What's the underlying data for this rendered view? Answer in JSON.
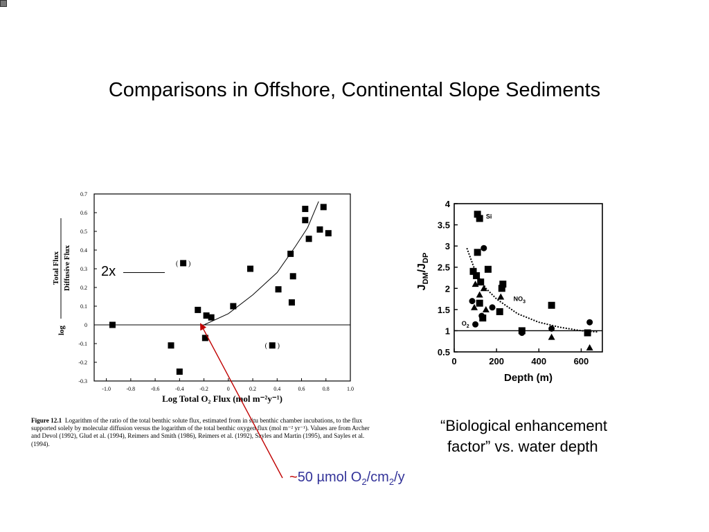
{
  "slide": {
    "title": "Comparisons in Offshore, Continental Slope Sediments"
  },
  "annotations": {
    "two_x": "2x",
    "bio_line1": "“Biological enhancement",
    "bio_line2": "factor” vs. water depth",
    "flux_prefix": "~",
    "flux_number": "50 µmol O",
    "flux_sub1": "2",
    "flux_mid": "/cm",
    "flux_sub2": "2",
    "flux_suffix": "/y",
    "arrow_color": "#c00000",
    "flux_color": "#333399"
  },
  "caption": {
    "figure_label": "Figure 12.1",
    "text": "Logarithm of the ratio of the total benthic solute flux, estimated from in situ benthic chamber incubations, to the flux supported solely by molecular diffusion versus the logarithm of the total benthic oxygen flux (mol m⁻² yr⁻¹). Values are from Archer and Devol (1992), Glud et al. (1994), Reimers and Smith (1986), Reimers et al. (1992), Sayles and Martin (1995), and Sayles et al. (1994)."
  },
  "chart_data": [
    {
      "type": "scatter",
      "xlabel": "Log Total O₂ Flux (mol m⁻²y⁻¹)",
      "ylabel_prefix": "log",
      "ylabel_numerator": "Total Flux",
      "ylabel_denominator": "Diffusive Flux",
      "xlim": [
        -1.1,
        1.0
      ],
      "ylim": [
        -0.3,
        0.7
      ],
      "xticks": [
        "-1.0",
        "-0.8",
        "-0.6",
        "-0.4",
        "-0.2",
        "0",
        "0.2",
        "0.4",
        "0.6",
        "0.8",
        "1.0"
      ],
      "xtick_values": [
        -1.0,
        -0.8,
        -0.6,
        -0.4,
        -0.2,
        0,
        0.2,
        0.4,
        0.6,
        0.8,
        1.0
      ],
      "yticks": [
        "0.7",
        "0.6",
        "0.5",
        "0.4",
        "0.3",
        "0.2",
        "0.1",
        "0",
        "-0.1",
        "-0.2",
        "-0.3"
      ],
      "ytick_values": [
        0.7,
        0.6,
        0.5,
        0.4,
        0.3,
        0.2,
        0.1,
        0,
        -0.1,
        -0.2,
        -0.3
      ],
      "points": [
        {
          "x": -0.95,
          "y": 0.0
        },
        {
          "x": -0.47,
          "y": -0.11
        },
        {
          "x": -0.4,
          "y": -0.25
        },
        {
          "x": -0.37,
          "y": 0.33,
          "bracketed": true
        },
        {
          "x": -0.25,
          "y": 0.08
        },
        {
          "x": -0.18,
          "y": 0.05
        },
        {
          "x": -0.14,
          "y": 0.04
        },
        {
          "x": -0.19,
          "y": -0.07
        },
        {
          "x": 0.04,
          "y": 0.1
        },
        {
          "x": 0.18,
          "y": 0.3
        },
        {
          "x": 0.36,
          "y": -0.11,
          "bracketed": true
        },
        {
          "x": 0.41,
          "y": 0.19
        },
        {
          "x": 0.51,
          "y": 0.38
        },
        {
          "x": 0.53,
          "y": 0.26
        },
        {
          "x": 0.52,
          "y": 0.12
        },
        {
          "x": 0.63,
          "y": 0.62
        },
        {
          "x": 0.63,
          "y": 0.56
        },
        {
          "x": 0.66,
          "y": 0.46
        },
        {
          "x": 0.75,
          "y": 0.51
        },
        {
          "x": 0.78,
          "y": 0.63
        },
        {
          "x": 0.82,
          "y": 0.49
        }
      ],
      "fit_curve": [
        {
          "x": -0.2,
          "y": 0.0
        },
        {
          "x": 0.0,
          "y": 0.06
        },
        {
          "x": 0.2,
          "y": 0.16
        },
        {
          "x": 0.4,
          "y": 0.28
        },
        {
          "x": 0.55,
          "y": 0.42
        },
        {
          "x": 0.65,
          "y": 0.52
        },
        {
          "x": 0.74,
          "y": 0.66
        }
      ],
      "reference_line_y": 0
    },
    {
      "type": "scatter",
      "xlabel": "Depth (m)",
      "ylabel": "J",
      "ylabel_sub1": "DM",
      "ylabel_mid": "/J",
      "ylabel_sub2": "DP",
      "xlim": [
        0,
        700
      ],
      "ylim": [
        0.5,
        4
      ],
      "xticks": [
        "0",
        "200",
        "400",
        "600"
      ],
      "xtick_values": [
        0,
        200,
        400,
        600
      ],
      "yticks": [
        "4",
        "3.5",
        "3",
        "2.5",
        "2",
        "1.5",
        "1",
        "0.5"
      ],
      "ytick_values": [
        4,
        3.5,
        3,
        2.5,
        2,
        1.5,
        1,
        0.5
      ],
      "series": [
        {
          "name": "Si",
          "marker": "square",
          "points": [
            {
              "x": 110,
              "y": 3.75
            },
            {
              "x": 120,
              "y": 3.65
            },
            {
              "x": 110,
              "y": 2.85
            },
            {
              "x": 90,
              "y": 2.4
            },
            {
              "x": 160,
              "y": 2.45
            },
            {
              "x": 105,
              "y": 2.3
            },
            {
              "x": 125,
              "y": 2.15
            },
            {
              "x": 230,
              "y": 2.1
            },
            {
              "x": 225,
              "y": 2.0
            },
            {
              "x": 120,
              "y": 1.65
            },
            {
              "x": 135,
              "y": 1.3
            },
            {
              "x": 215,
              "y": 1.45
            },
            {
              "x": 320,
              "y": 1.0
            },
            {
              "x": 460,
              "y": 1.6
            },
            {
              "x": 630,
              "y": 0.95
            }
          ]
        },
        {
          "name": "NO₃",
          "marker": "triangle",
          "points": [
            {
              "x": 100,
              "y": 2.1
            },
            {
              "x": 140,
              "y": 2.0
            },
            {
              "x": 120,
              "y": 1.85
            },
            {
              "x": 95,
              "y": 1.55
            },
            {
              "x": 150,
              "y": 1.5
            },
            {
              "x": 220,
              "y": 1.8
            },
            {
              "x": 460,
              "y": 0.85
            },
            {
              "x": 640,
              "y": 0.6
            }
          ]
        },
        {
          "name": "O₂",
          "marker": "circle",
          "points": [
            {
              "x": 140,
              "y": 2.95
            },
            {
              "x": 85,
              "y": 1.7
            },
            {
              "x": 100,
              "y": 1.15
            },
            {
              "x": 130,
              "y": 1.35
            },
            {
              "x": 180,
              "y": 1.55
            },
            {
              "x": 320,
              "y": 0.95
            },
            {
              "x": 460,
              "y": 1.05
            },
            {
              "x": 640,
              "y": 1.2
            }
          ]
        }
      ],
      "fit_curve": [
        {
          "x": 60,
          "y": 2.95
        },
        {
          "x": 100,
          "y": 2.4
        },
        {
          "x": 150,
          "y": 2.0
        },
        {
          "x": 200,
          "y": 1.75
        },
        {
          "x": 300,
          "y": 1.4
        },
        {
          "x": 400,
          "y": 1.2
        },
        {
          "x": 500,
          "y": 1.08
        },
        {
          "x": 600,
          "y": 1.0
        },
        {
          "x": 680,
          "y": 0.97
        }
      ],
      "reference_line_y": 1,
      "series_labels": {
        "si": "Si",
        "no3": "NO",
        "no3_sub": "3",
        "o2": "O",
        "o2_sub": "2"
      }
    }
  ]
}
